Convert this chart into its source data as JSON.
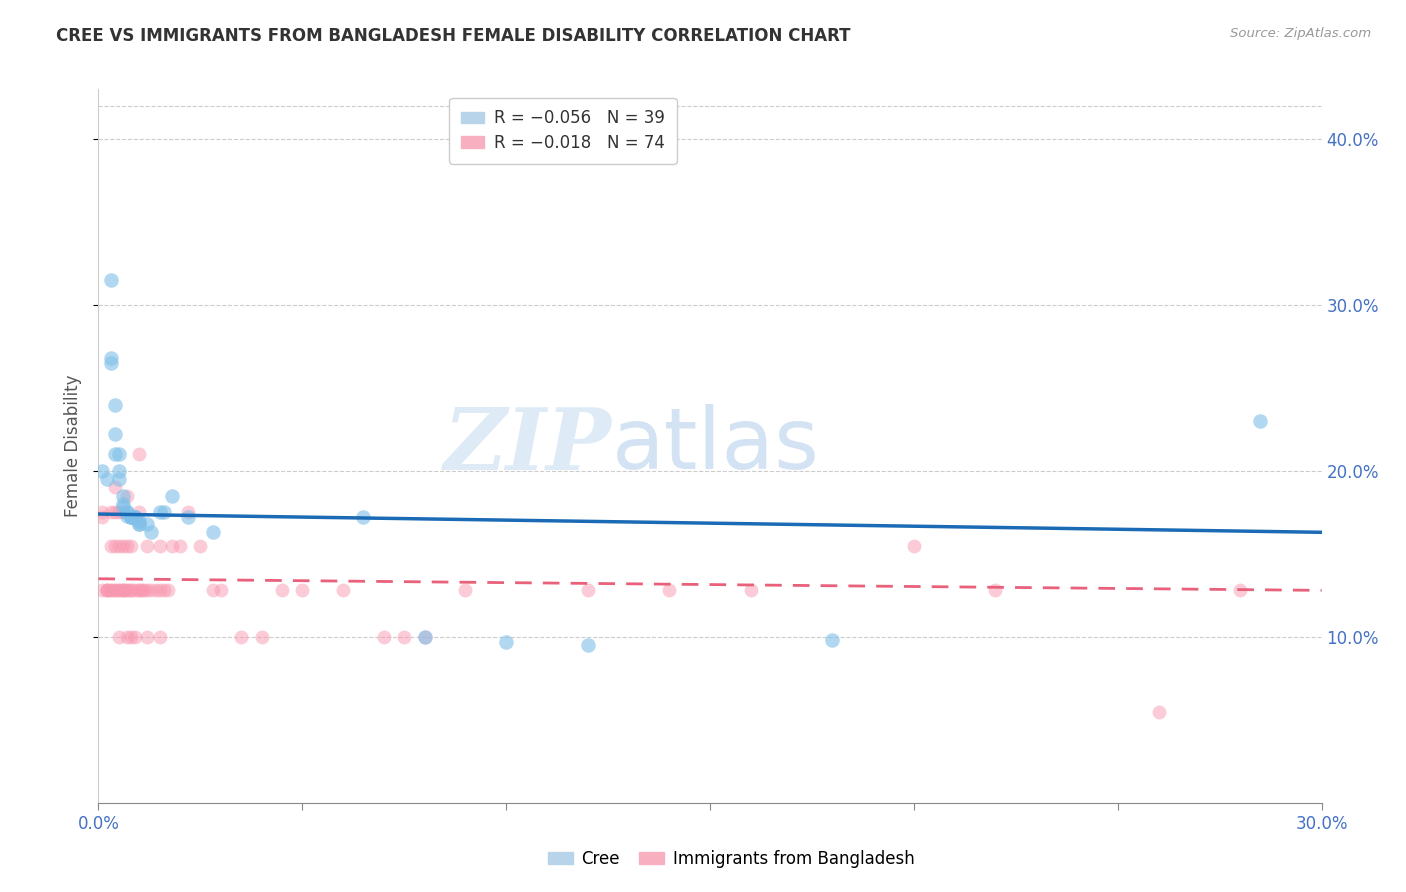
{
  "title": "CREE VS IMMIGRANTS FROM BANGLADESH FEMALE DISABILITY CORRELATION CHART",
  "source": "Source: ZipAtlas.com",
  "ylabel": "Female Disability",
  "xlim": [
    0.0,
    0.3
  ],
  "ylim": [
    0.0,
    0.43
  ],
  "xticks_shown": [
    0.0,
    0.3
  ],
  "xticks_minor": [
    0.05,
    0.1,
    0.15,
    0.2,
    0.25
  ],
  "yticks_right": [
    0.1,
    0.2,
    0.3,
    0.4
  ],
  "legend_labels_bottom": [
    "Cree",
    "Immigrants from Bangladesh"
  ],
  "cree_color": "#7fbfe8",
  "bangladesh_color": "#f898b0",
  "cree_line_color": "#1a6ab5",
  "bangladesh_line_color": "#e8607a",
  "watermark_zip": "ZIP",
  "watermark_atlas": "atlas",
  "cree_data": [
    [
      0.001,
      0.2
    ],
    [
      0.002,
      0.195
    ],
    [
      0.003,
      0.315
    ],
    [
      0.003,
      0.268
    ],
    [
      0.003,
      0.265
    ],
    [
      0.004,
      0.24
    ],
    [
      0.004,
      0.222
    ],
    [
      0.004,
      0.21
    ],
    [
      0.005,
      0.21
    ],
    [
      0.005,
      0.2
    ],
    [
      0.005,
      0.195
    ],
    [
      0.006,
      0.185
    ],
    [
      0.006,
      0.18
    ],
    [
      0.006,
      0.178
    ],
    [
      0.007,
      0.175
    ],
    [
      0.007,
      0.175
    ],
    [
      0.007,
      0.173
    ],
    [
      0.008,
      0.172
    ],
    [
      0.008,
      0.172
    ],
    [
      0.008,
      0.172
    ],
    [
      0.009,
      0.172
    ],
    [
      0.009,
      0.172
    ],
    [
      0.009,
      0.172
    ],
    [
      0.01,
      0.17
    ],
    [
      0.01,
      0.168
    ],
    [
      0.01,
      0.168
    ],
    [
      0.012,
      0.168
    ],
    [
      0.013,
      0.163
    ],
    [
      0.015,
      0.175
    ],
    [
      0.016,
      0.175
    ],
    [
      0.018,
      0.185
    ],
    [
      0.022,
      0.172
    ],
    [
      0.028,
      0.163
    ],
    [
      0.065,
      0.172
    ],
    [
      0.08,
      0.1
    ],
    [
      0.1,
      0.097
    ],
    [
      0.12,
      0.095
    ],
    [
      0.18,
      0.098
    ],
    [
      0.285,
      0.23
    ]
  ],
  "bangladesh_data": [
    [
      0.001,
      0.175
    ],
    [
      0.001,
      0.172
    ],
    [
      0.001,
      0.128
    ],
    [
      0.002,
      0.128
    ],
    [
      0.002,
      0.128
    ],
    [
      0.002,
      0.128
    ],
    [
      0.003,
      0.175
    ],
    [
      0.003,
      0.155
    ],
    [
      0.003,
      0.128
    ],
    [
      0.003,
      0.128
    ],
    [
      0.004,
      0.19
    ],
    [
      0.004,
      0.175
    ],
    [
      0.004,
      0.155
    ],
    [
      0.004,
      0.128
    ],
    [
      0.004,
      0.128
    ],
    [
      0.005,
      0.175
    ],
    [
      0.005,
      0.155
    ],
    [
      0.005,
      0.128
    ],
    [
      0.005,
      0.128
    ],
    [
      0.005,
      0.1
    ],
    [
      0.006,
      0.175
    ],
    [
      0.006,
      0.155
    ],
    [
      0.006,
      0.128
    ],
    [
      0.006,
      0.128
    ],
    [
      0.006,
      0.128
    ],
    [
      0.007,
      0.185
    ],
    [
      0.007,
      0.155
    ],
    [
      0.007,
      0.128
    ],
    [
      0.007,
      0.128
    ],
    [
      0.007,
      0.1
    ],
    [
      0.008,
      0.155
    ],
    [
      0.008,
      0.128
    ],
    [
      0.008,
      0.128
    ],
    [
      0.008,
      0.1
    ],
    [
      0.009,
      0.128
    ],
    [
      0.009,
      0.1
    ],
    [
      0.01,
      0.21
    ],
    [
      0.01,
      0.175
    ],
    [
      0.01,
      0.128
    ],
    [
      0.01,
      0.128
    ],
    [
      0.011,
      0.128
    ],
    [
      0.011,
      0.128
    ],
    [
      0.012,
      0.155
    ],
    [
      0.012,
      0.128
    ],
    [
      0.012,
      0.1
    ],
    [
      0.013,
      0.128
    ],
    [
      0.014,
      0.128
    ],
    [
      0.015,
      0.155
    ],
    [
      0.015,
      0.128
    ],
    [
      0.015,
      0.1
    ],
    [
      0.016,
      0.128
    ],
    [
      0.017,
      0.128
    ],
    [
      0.018,
      0.155
    ],
    [
      0.02,
      0.155
    ],
    [
      0.022,
      0.175
    ],
    [
      0.025,
      0.155
    ],
    [
      0.028,
      0.128
    ],
    [
      0.03,
      0.128
    ],
    [
      0.035,
      0.1
    ],
    [
      0.04,
      0.1
    ],
    [
      0.045,
      0.128
    ],
    [
      0.05,
      0.128
    ],
    [
      0.06,
      0.128
    ],
    [
      0.07,
      0.1
    ],
    [
      0.075,
      0.1
    ],
    [
      0.08,
      0.1
    ],
    [
      0.09,
      0.128
    ],
    [
      0.12,
      0.128
    ],
    [
      0.14,
      0.128
    ],
    [
      0.16,
      0.128
    ],
    [
      0.2,
      0.155
    ],
    [
      0.22,
      0.128
    ],
    [
      0.26,
      0.055
    ],
    [
      0.28,
      0.128
    ]
  ]
}
